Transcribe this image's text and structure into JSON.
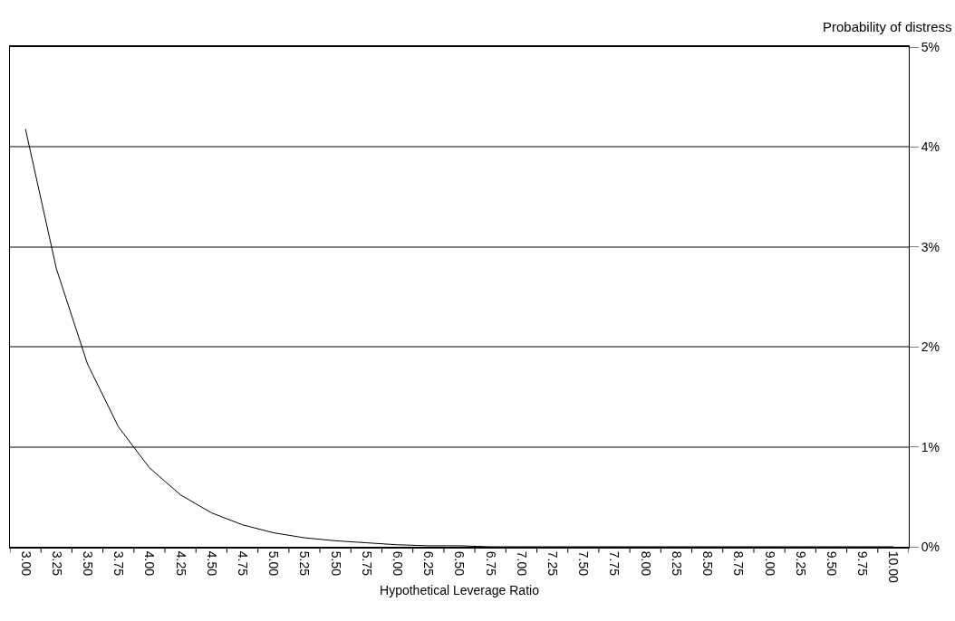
{
  "chart_data": {
    "type": "line",
    "ylabel": "Probability of distress",
    "xlabel": "Hypothetical Leverage Ratio",
    "categories": [
      "3.00",
      "3.25",
      "3.50",
      "3.75",
      "4.00",
      "4.25",
      "4.50",
      "4.75",
      "5.00",
      "5.25",
      "5.50",
      "5.75",
      "6.00",
      "6.25",
      "6.50",
      "6.75",
      "7.00",
      "7.25",
      "7.50",
      "7.75",
      "8.00",
      "8.25",
      "8.50",
      "8.75",
      "9.00",
      "9.25",
      "9.50",
      "9.75",
      "10.00"
    ],
    "series": [
      {
        "color": "#000000",
        "values": [
          4.18,
          2.78,
          1.83,
          1.2,
          0.79,
          0.52,
          0.34,
          0.22,
          0.14,
          0.09,
          0.06,
          0.04,
          0.02,
          0.01,
          0.01,
          0.0,
          0.0,
          0.0,
          0.0,
          0.0,
          0.0,
          0.0,
          0.0,
          0.0,
          0.0,
          0.0,
          0.0,
          0.0,
          0.0
        ]
      }
    ],
    "ylim": [
      0,
      5
    ],
    "yticks": [
      {
        "value": 0,
        "label": "0%"
      },
      {
        "value": 1,
        "label": "1%"
      },
      {
        "value": 2,
        "label": "2%"
      },
      {
        "value": 3,
        "label": "3%"
      },
      {
        "value": 4,
        "label": "4%"
      },
      {
        "value": 5,
        "label": "5%"
      }
    ],
    "grid": "y",
    "marker": "none",
    "line_style": "solid"
  }
}
